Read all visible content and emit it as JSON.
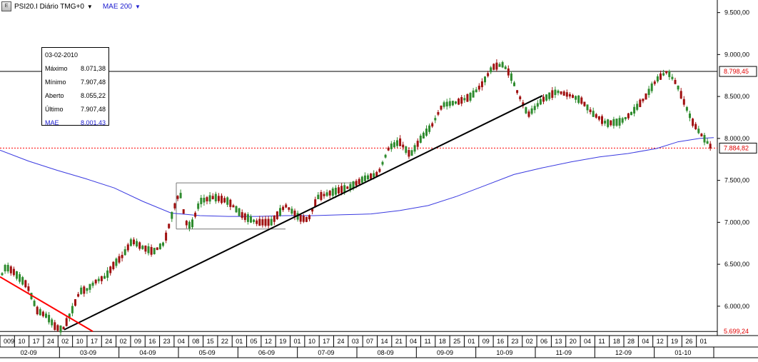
{
  "header": {
    "series_label": "PSI20.I Diário TMG+0",
    "indicator_label": "MAE 200",
    "logo_text": "E",
    "caret": "▼"
  },
  "tooltip": {
    "date": "03-02-2010",
    "rows": [
      {
        "label": "Máximo",
        "value": "8.071,38"
      },
      {
        "label": "Mínimo",
        "value": "7.907,48"
      },
      {
        "label": "Aberto",
        "value": "8.055,22"
      },
      {
        "label": "Último",
        "value": "7.907,48"
      }
    ],
    "mae": {
      "label": "MAE",
      "value": "8.001,43"
    }
  },
  "colors": {
    "up": "#2e8b2e",
    "down": "#a01010",
    "ma": "#3a3ae0",
    "trend": "#000000",
    "downtrend": "#ff0000",
    "last_price_line": "#ff0000",
    "price_tag_red": "#e00000"
  },
  "chart_data": {
    "type": "candlestick",
    "title": "PSI20.I Diário TMG+0",
    "ylim": [
      5650,
      9650
    ],
    "y_ticks": [
      6000,
      6500,
      7000,
      7500,
      8000,
      8500,
      9000,
      9500
    ],
    "y_tick_labels": [
      "6.000,00",
      "6.500,00",
      "7.000,00",
      "7.500,00",
      "8.000,00",
      "8.500,00",
      "9.000,00",
      "9.500,00"
    ],
    "price_tags": [
      {
        "value": 8798.45,
        "label": "8.798,45"
      },
      {
        "value": 7884.82,
        "label": "7.884,82"
      },
      {
        "value": 5699.24,
        "label": "5.699,24"
      }
    ],
    "horizontal_lines": [
      8798.45,
      5699.24
    ],
    "last_price": 7884.82,
    "x_day_labels": [
      "009",
      "10",
      "17",
      "24",
      "02",
      "10",
      "17",
      "24",
      "02",
      "09",
      "16",
      "23",
      "04",
      "08",
      "15",
      "22",
      "01",
      "05",
      "12",
      "19",
      "01",
      "10",
      "17",
      "24",
      "03",
      "07",
      "14",
      "21",
      "04",
      "11",
      "18",
      "25",
      "01",
      "09",
      "16",
      "23",
      "02",
      "06",
      "13",
      "20",
      "04",
      "11",
      "18",
      "28",
      "04",
      "12",
      "19",
      "26",
      "01"
    ],
    "x_month_labels": [
      "02-09",
      "03-09",
      "04-09",
      "05-09",
      "06-09",
      "07-09",
      "08-09",
      "09-09",
      "10-09",
      "11-09",
      "12-09",
      "01-10"
    ],
    "anchors": [
      [
        0,
        6330
      ],
      [
        8,
        6470
      ],
      [
        18,
        6420
      ],
      [
        26,
        6350
      ],
      [
        38,
        6250
      ],
      [
        52,
        5950
      ],
      [
        66,
        5880
      ],
      [
        78,
        5750
      ],
      [
        88,
        5720
      ],
      [
        100,
        5930
      ],
      [
        112,
        6180
      ],
      [
        122,
        6200
      ],
      [
        135,
        6300
      ],
      [
        148,
        6350
      ],
      [
        160,
        6500
      ],
      [
        172,
        6600
      ],
      [
        185,
        6780
      ],
      [
        200,
        6700
      ],
      [
        215,
        6650
      ],
      [
        230,
        6750
      ],
      [
        243,
        7150
      ],
      [
        252,
        7370
      ],
      [
        260,
        7000
      ],
      [
        268,
        6950
      ],
      [
        280,
        7250
      ],
      [
        300,
        7300
      ],
      [
        320,
        7250
      ],
      [
        340,
        7080
      ],
      [
        360,
        7000
      ],
      [
        380,
        7000
      ],
      [
        400,
        7200
      ],
      [
        420,
        7050
      ],
      [
        432,
        7030
      ],
      [
        445,
        7300
      ],
      [
        470,
        7370
      ],
      [
        490,
        7420
      ],
      [
        510,
        7520
      ],
      [
        530,
        7580
      ],
      [
        545,
        7890
      ],
      [
        560,
        7960
      ],
      [
        575,
        7800
      ],
      [
        590,
        8000
      ],
      [
        605,
        8150
      ],
      [
        620,
        8400
      ],
      [
        640,
        8430
      ],
      [
        660,
        8500
      ],
      [
        675,
        8640
      ],
      [
        690,
        8850
      ],
      [
        705,
        8880
      ],
      [
        715,
        8760
      ],
      [
        725,
        8550
      ],
      [
        740,
        8280
      ],
      [
        760,
        8460
      ],
      [
        780,
        8560
      ],
      [
        800,
        8510
      ],
      [
        815,
        8450
      ],
      [
        830,
        8300
      ],
      [
        850,
        8180
      ],
      [
        870,
        8200
      ],
      [
        885,
        8300
      ],
      [
        905,
        8500
      ],
      [
        920,
        8700
      ],
      [
        935,
        8800
      ],
      [
        948,
        8650
      ],
      [
        960,
        8400
      ],
      [
        970,
        8200
      ],
      [
        982,
        8050
      ],
      [
        996,
        7900
      ]
    ],
    "ma_points": [
      [
        0,
        7860
      ],
      [
        40,
        7730
      ],
      [
        80,
        7620
      ],
      [
        120,
        7520
      ],
      [
        160,
        7410
      ],
      [
        200,
        7250
      ],
      [
        240,
        7110
      ],
      [
        280,
        7080
      ],
      [
        320,
        7070
      ],
      [
        360,
        7070
      ],
      [
        400,
        7080
      ],
      [
        440,
        7080
      ],
      [
        480,
        7090
      ],
      [
        520,
        7100
      ],
      [
        560,
        7140
      ],
      [
        600,
        7200
      ],
      [
        640,
        7310
      ],
      [
        680,
        7440
      ],
      [
        720,
        7570
      ],
      [
        760,
        7650
      ],
      [
        800,
        7720
      ],
      [
        840,
        7780
      ],
      [
        880,
        7820
      ],
      [
        920,
        7880
      ],
      [
        950,
        7960
      ],
      [
        980,
        8000
      ],
      [
        1000,
        8010
      ]
    ],
    "trendlines": [
      {
        "name": "uptrend",
        "points": [
          [
            90,
            5720
          ],
          [
            760,
            8510
          ]
        ]
      },
      {
        "name": "downtrend",
        "points": [
          [
            0,
            6350
          ],
          [
            130,
            5700
          ]
        ]
      }
    ],
    "range_box": {
      "x0": 247,
      "x1": 400,
      "upper": 7470,
      "lower": 6920,
      "upper_end": 500
    }
  }
}
